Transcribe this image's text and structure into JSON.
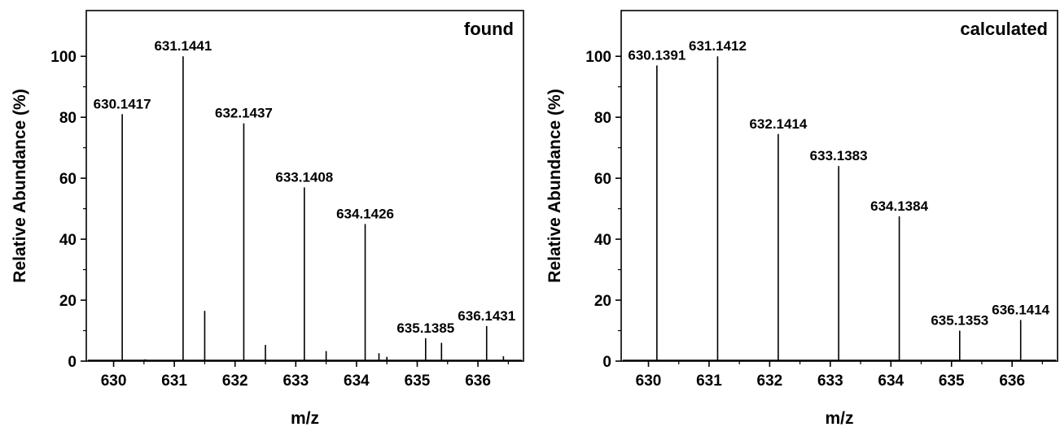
{
  "chart_data": [
    {
      "type": "bar",
      "title": "found",
      "xlabel": "m/z",
      "ylabel": "Relative Abundance (%)",
      "xlim": [
        629.55,
        636.75
      ],
      "ylim": [
        0,
        115
      ],
      "xticks": [
        "630",
        "631",
        "632",
        "633",
        "634",
        "635",
        "636"
      ],
      "yticks": [
        "0",
        "20",
        "40",
        "60",
        "80",
        "100"
      ],
      "grid": false,
      "peaks": [
        {
          "x": 630.1417,
          "y": 81,
          "label": "630.1417"
        },
        {
          "x": 630.52,
          "y": 0.6,
          "label": ""
        },
        {
          "x": 631.1441,
          "y": 100,
          "label": "631.1441"
        },
        {
          "x": 631.5,
          "y": 16.5,
          "label": ""
        },
        {
          "x": 632.1437,
          "y": 78,
          "label": "632.1437"
        },
        {
          "x": 632.5,
          "y": 5.3,
          "label": ""
        },
        {
          "x": 633.1408,
          "y": 57,
          "label": "633.1408"
        },
        {
          "x": 633.5,
          "y": 3.3,
          "label": ""
        },
        {
          "x": 634.1426,
          "y": 45,
          "label": "634.1426"
        },
        {
          "x": 634.37,
          "y": 2.6,
          "label": ""
        },
        {
          "x": 634.5,
          "y": 1.4,
          "label": ""
        },
        {
          "x": 635.1385,
          "y": 7.5,
          "label": "635.1385"
        },
        {
          "x": 635.4,
          "y": 6,
          "label": ""
        },
        {
          "x": 636.1431,
          "y": 11.5,
          "label": "636.1431"
        },
        {
          "x": 636.42,
          "y": 1.6,
          "label": ""
        }
      ]
    },
    {
      "type": "bar",
      "title": "calculated",
      "xlabel": "m/z",
      "ylabel": "Relative Abundance (%)",
      "xlim": [
        629.55,
        636.75
      ],
      "ylim": [
        0,
        115
      ],
      "xticks": [
        "630",
        "631",
        "632",
        "633",
        "634",
        "635",
        "636"
      ],
      "yticks": [
        "0",
        "20",
        "40",
        "60",
        "80",
        "100"
      ],
      "grid": false,
      "peaks": [
        {
          "x": 630.1391,
          "y": 97,
          "label": "630.1391"
        },
        {
          "x": 631.1412,
          "y": 100,
          "label": "631.1412"
        },
        {
          "x": 632.1414,
          "y": 74.5,
          "label": "632.1414"
        },
        {
          "x": 633.1383,
          "y": 64,
          "label": "633.1383"
        },
        {
          "x": 634.1384,
          "y": 47.5,
          "label": "634.1384"
        },
        {
          "x": 635.1353,
          "y": 10,
          "label": "635.1353"
        },
        {
          "x": 636.1414,
          "y": 13.5,
          "label": "636.1414"
        }
      ]
    }
  ]
}
